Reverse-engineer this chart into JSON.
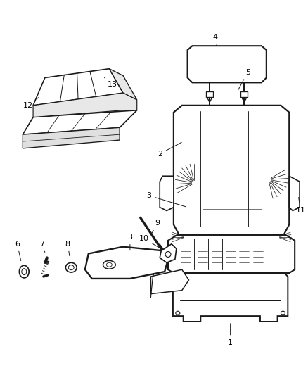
{
  "background_color": "#ffffff",
  "line_color": "#1a1a1a",
  "label_color": "#000000",
  "figsize": [
    4.38,
    5.33
  ],
  "dpi": 100
}
